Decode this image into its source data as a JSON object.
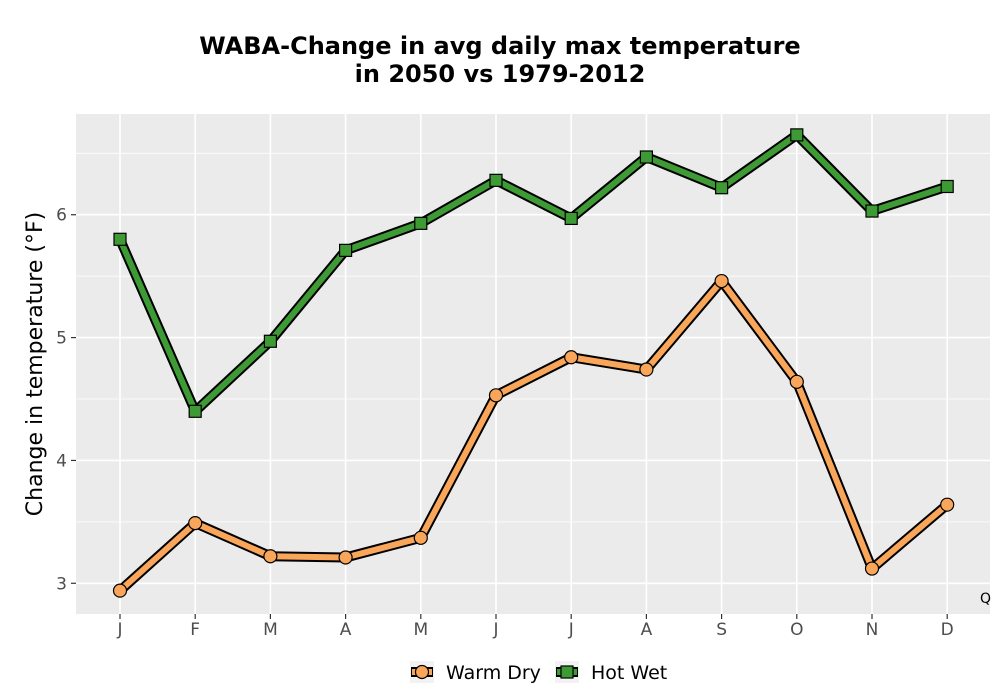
{
  "chart_data": {
    "type": "line",
    "title_lines": [
      "WABA-Change in avg daily max temperature",
      "in 2050 vs 1979-2012"
    ],
    "xlabel": "",
    "ylabel": "Change in temperature (°F)",
    "categories": [
      "J",
      "F",
      "M",
      "A",
      "M",
      "J",
      "J",
      "A",
      "S",
      "O",
      "N",
      "D"
    ],
    "ylim": [
      2.75,
      6.82
    ],
    "yticks": [
      3,
      4,
      5,
      6
    ],
    "grid": true,
    "legend_position": "bottom",
    "corner_note": "Q",
    "series": [
      {
        "name": "Warm Dry",
        "marker": "circle",
        "color": "#F9A65A",
        "values": [
          2.94,
          3.49,
          3.22,
          3.21,
          3.37,
          4.53,
          4.84,
          4.74,
          5.46,
          4.64,
          3.12,
          3.64
        ]
      },
      {
        "name": "Hot Wet",
        "marker": "square",
        "color": "#3E9A35",
        "values": [
          5.8,
          4.4,
          4.97,
          5.71,
          5.93,
          6.28,
          5.97,
          6.47,
          6.22,
          6.65,
          6.03,
          6.23
        ]
      }
    ]
  }
}
